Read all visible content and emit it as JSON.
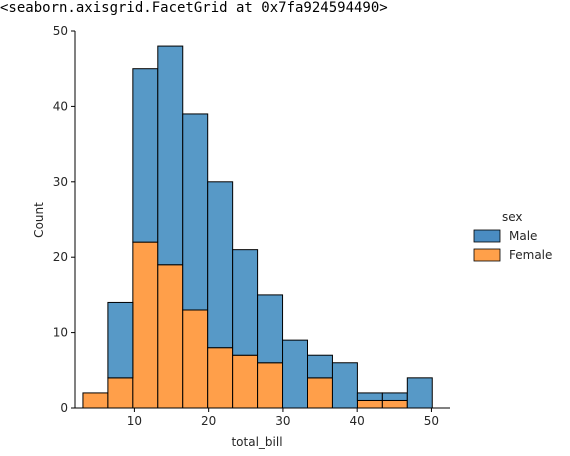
{
  "output": {
    "repr_text": "<seaborn.axisgrid.FacetGrid at 0x7fa924594490>"
  },
  "chart_data": {
    "type": "bar",
    "subtype": "stacked-histogram",
    "xlabel": "total_bill",
    "ylabel": "Count",
    "xlim": [
      2.0,
      52.5
    ],
    "ylim": [
      0,
      50
    ],
    "xticks": [
      10,
      20,
      30,
      40,
      50
    ],
    "yticks": [
      0,
      10,
      20,
      30,
      40,
      50
    ],
    "bin_edges": [
      3.07,
      6.43,
      9.79,
      13.15,
      16.51,
      19.87,
      23.23,
      26.59,
      29.95,
      33.31,
      36.67,
      40.03,
      43.39,
      46.75,
      50.11,
      53.47
    ],
    "series": [
      {
        "name": "Male",
        "color": "#1f77b4",
        "values": [
          0,
          10,
          23,
          29,
          26,
          22,
          14,
          9,
          9,
          3,
          6,
          1,
          1,
          4,
          0
        ]
      },
      {
        "name": "Female",
        "color": "#ff7f0e",
        "values": [
          2,
          4,
          22,
          19,
          13,
          8,
          7,
          6,
          0,
          4,
          0,
          1,
          1,
          0,
          0
        ]
      }
    ],
    "legend": {
      "title": "sex",
      "position": "right",
      "entries": [
        "Male",
        "Female"
      ]
    },
    "grid": false
  }
}
